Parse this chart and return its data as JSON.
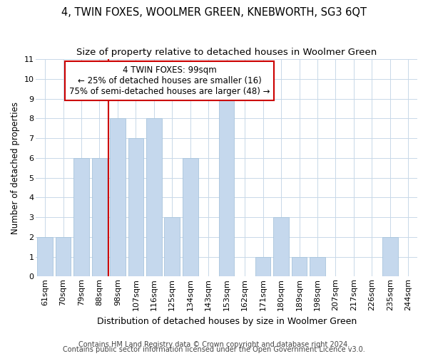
{
  "title": "4, TWIN FOXES, WOOLMER GREEN, KNEBWORTH, SG3 6QT",
  "subtitle": "Size of property relative to detached houses in Woolmer Green",
  "xlabel": "Distribution of detached houses by size in Woolmer Green",
  "ylabel": "Number of detached properties",
  "categories": [
    "61sqm",
    "70sqm",
    "79sqm",
    "88sqm",
    "98sqm",
    "107sqm",
    "116sqm",
    "125sqm",
    "134sqm",
    "143sqm",
    "153sqm",
    "162sqm",
    "171sqm",
    "180sqm",
    "189sqm",
    "198sqm",
    "207sqm",
    "217sqm",
    "226sqm",
    "235sqm",
    "244sqm"
  ],
  "values": [
    2,
    2,
    6,
    6,
    8,
    7,
    8,
    3,
    6,
    0,
    9,
    0,
    1,
    3,
    1,
    1,
    0,
    0,
    0,
    2,
    0
  ],
  "bar_color": "#c5d8ed",
  "bar_edgecolor": "#a8c4dc",
  "vline_color": "#cc0000",
  "vline_x_index": 4,
  "annotation_text": "4 TWIN FOXES: 99sqm\n← 25% of detached houses are smaller (16)\n75% of semi-detached houses are larger (48) →",
  "annotation_box_color": "#ffffff",
  "annotation_box_edgecolor": "#cc0000",
  "ylim": [
    0,
    11
  ],
  "yticks": [
    0,
    1,
    2,
    3,
    4,
    5,
    6,
    7,
    8,
    9,
    10,
    11
  ],
  "footer_line1": "Contains HM Land Registry data © Crown copyright and database right 2024.",
  "footer_line2": "Contains public sector information licensed under the Open Government Licence v3.0.",
  "bg_color": "#ffffff",
  "grid_color": "#c8d8e8",
  "title_fontsize": 10.5,
  "subtitle_fontsize": 9.5,
  "xlabel_fontsize": 9,
  "ylabel_fontsize": 8.5,
  "tick_fontsize": 8,
  "annotation_fontsize": 8.5,
  "footer_fontsize": 7
}
